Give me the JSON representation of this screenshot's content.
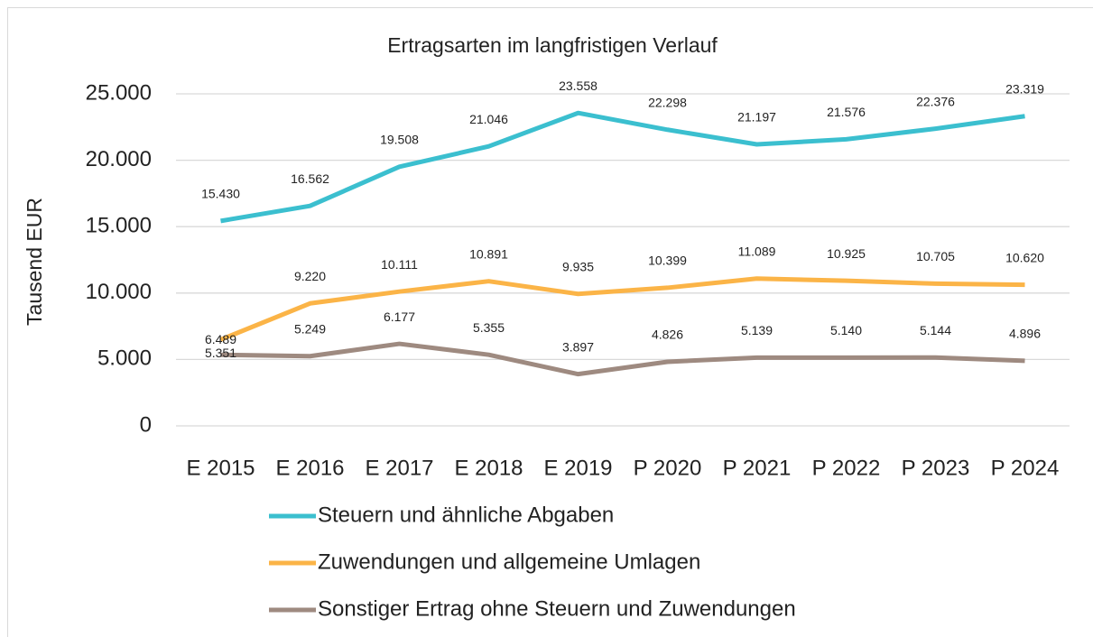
{
  "chart_data": {
    "type": "line",
    "title": "Ertragsarten im langfristigen Verlauf",
    "y_label": "Tausend EUR",
    "categories": [
      "E 2015",
      "E 2016",
      "E 2017",
      "E 2018",
      "E 2019",
      "P 2020",
      "P 2021",
      "P 2022",
      "P 2023",
      "P 2024"
    ],
    "series": [
      {
        "name": "Steuern und ähnliche Abgaben",
        "color": "#3bbfcf",
        "values": [
          15430,
          16562,
          19508,
          21046,
          23558,
          22298,
          21197,
          21576,
          22376,
          23319
        ],
        "value_labels": [
          "15.430",
          "16.562",
          "19.508",
          "21.046",
          "23.558",
          "22.298",
          "21.197",
          "21.576",
          "22.376",
          "23.319"
        ]
      },
      {
        "name": "Zuwendungen und allgemeine Umlagen",
        "color": "#fbb447",
        "values": [
          6489,
          9220,
          10111,
          10891,
          9935,
          10399,
          11089,
          10925,
          10705,
          10620
        ],
        "value_labels": [
          "6.489",
          "9.220",
          "10.111",
          "10.891",
          "9.935",
          "10.399",
          "11.089",
          "10.925",
          "10.705",
          "10.620"
        ]
      },
      {
        "name": "Sonstiger Ertrag ohne Steuern und Zuwendungen",
        "color": "#9e8a80",
        "values": [
          5351,
          5249,
          6177,
          5355,
          3897,
          4826,
          5139,
          5140,
          5144,
          4896
        ],
        "value_labels": [
          "5.351",
          "5.249",
          "6.177",
          "5.355",
          "3.897",
          "4.826",
          "5.139",
          "5.140",
          "5.144",
          "4.896"
        ]
      }
    ],
    "ylim": [
      0,
      25000
    ],
    "yticks": [
      0,
      {
        "value": 5000,
        "label": "5.000"
      },
      {
        "value": 10000,
        "label": "10.000"
      },
      {
        "value": 15000,
        "label": "15.000"
      },
      {
        "value": 20000,
        "label": "20.000"
      },
      {
        "value": 25000,
        "label": "25.000"
      }
    ],
    "grid": true,
    "legend": "bottom"
  }
}
